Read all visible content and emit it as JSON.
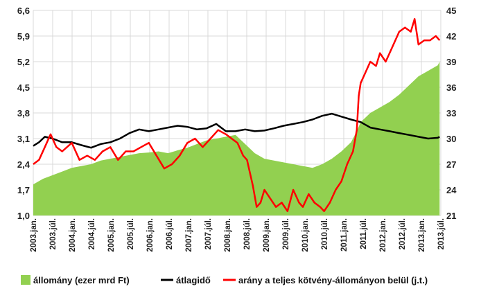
{
  "chart_data": {
    "type": "line",
    "colors": {
      "area": "#92d050",
      "avg": "#000000",
      "ratio": "#ff0000",
      "grid": "#d9d9d9"
    },
    "x_categories": [
      "2003.jan.",
      "2003.júl.",
      "2004.jan.",
      "2004.júl.",
      "2005.jan.",
      "2005.júl.",
      "2006.jan.",
      "2006.júl.",
      "2007.jan.",
      "2007.júl.",
      "2008.jan.",
      "2008.júl.",
      "2009.jan.",
      "2009.júl.",
      "2010.jan.",
      "2010.júl.",
      "2011.jan.",
      "2011.júl.",
      "2012.jan.",
      "2012.júl.",
      "2013.jan.",
      "2013.júl."
    ],
    "y_left": {
      "min": 1.0,
      "max": 6.6,
      "ticks": [
        "1,0",
        "1,7",
        "2,4",
        "3,1",
        "3,8",
        "4,5",
        "5,2",
        "5,9",
        "6,6"
      ]
    },
    "y_right": {
      "min": 21,
      "max": 45,
      "ticks": [
        "21",
        "24",
        "27",
        "30",
        "33",
        "36",
        "39",
        "42",
        "45"
      ]
    },
    "series": [
      {
        "name": "állomány (ezer mrd Ft)",
        "kind": "area",
        "axis": "left",
        "points": [
          [
            2003.0,
            1.85
          ],
          [
            2003.25,
            2.0
          ],
          [
            2003.5,
            2.1
          ],
          [
            2003.75,
            2.2
          ],
          [
            2004.0,
            2.3
          ],
          [
            2004.25,
            2.35
          ],
          [
            2004.5,
            2.4
          ],
          [
            2004.75,
            2.5
          ],
          [
            2005.0,
            2.55
          ],
          [
            2005.25,
            2.6
          ],
          [
            2005.5,
            2.65
          ],
          [
            2005.75,
            2.7
          ],
          [
            2006.0,
            2.72
          ],
          [
            2006.25,
            2.75
          ],
          [
            2006.5,
            2.7
          ],
          [
            2006.75,
            2.78
          ],
          [
            2007.0,
            2.85
          ],
          [
            2007.25,
            2.95
          ],
          [
            2007.5,
            3.05
          ],
          [
            2007.75,
            3.1
          ],
          [
            2008.0,
            3.15
          ],
          [
            2008.25,
            3.2
          ],
          [
            2008.5,
            2.95
          ],
          [
            2008.75,
            2.7
          ],
          [
            2009.0,
            2.55
          ],
          [
            2009.25,
            2.5
          ],
          [
            2009.5,
            2.45
          ],
          [
            2009.75,
            2.4
          ],
          [
            2010.0,
            2.35
          ],
          [
            2010.25,
            2.3
          ],
          [
            2010.5,
            2.4
          ],
          [
            2010.75,
            2.55
          ],
          [
            2011.0,
            2.75
          ],
          [
            2011.25,
            3.0
          ],
          [
            2011.4,
            3.3
          ],
          [
            2011.5,
            3.55
          ],
          [
            2011.75,
            3.8
          ],
          [
            2012.0,
            3.95
          ],
          [
            2012.25,
            4.1
          ],
          [
            2012.5,
            4.3
          ],
          [
            2012.75,
            4.55
          ],
          [
            2013.0,
            4.8
          ],
          [
            2013.25,
            4.95
          ],
          [
            2013.5,
            5.1
          ],
          [
            2013.55,
            5.2
          ]
        ]
      },
      {
        "name": "átlagidő",
        "kind": "line",
        "axis": "left",
        "points": [
          [
            2003.0,
            2.9
          ],
          [
            2003.15,
            3.0
          ],
          [
            2003.3,
            3.15
          ],
          [
            2003.5,
            3.1
          ],
          [
            2003.75,
            3.0
          ],
          [
            2004.0,
            3.0
          ],
          [
            2004.25,
            2.92
          ],
          [
            2004.5,
            2.85
          ],
          [
            2004.75,
            2.95
          ],
          [
            2005.0,
            3.0
          ],
          [
            2005.25,
            3.1
          ],
          [
            2005.5,
            3.25
          ],
          [
            2005.75,
            3.35
          ],
          [
            2006.0,
            3.3
          ],
          [
            2006.25,
            3.35
          ],
          [
            2006.5,
            3.4
          ],
          [
            2006.75,
            3.45
          ],
          [
            2007.0,
            3.42
          ],
          [
            2007.25,
            3.35
          ],
          [
            2007.5,
            3.38
          ],
          [
            2007.75,
            3.5
          ],
          [
            2008.0,
            3.3
          ],
          [
            2008.25,
            3.3
          ],
          [
            2008.5,
            3.35
          ],
          [
            2008.75,
            3.3
          ],
          [
            2009.0,
            3.32
          ],
          [
            2009.25,
            3.38
          ],
          [
            2009.5,
            3.45
          ],
          [
            2009.75,
            3.5
          ],
          [
            2010.0,
            3.55
          ],
          [
            2010.25,
            3.62
          ],
          [
            2010.5,
            3.72
          ],
          [
            2010.75,
            3.78
          ],
          [
            2011.0,
            3.7
          ],
          [
            2011.25,
            3.62
          ],
          [
            2011.5,
            3.55
          ],
          [
            2011.75,
            3.4
          ],
          [
            2012.0,
            3.35
          ],
          [
            2012.25,
            3.3
          ],
          [
            2012.5,
            3.25
          ],
          [
            2012.75,
            3.2
          ],
          [
            2013.0,
            3.15
          ],
          [
            2013.25,
            3.1
          ],
          [
            2013.5,
            3.12
          ],
          [
            2013.55,
            3.15
          ]
        ]
      },
      {
        "name": "arány a teljes kötvény-állományon belül (j.t.)",
        "kind": "line",
        "axis": "right",
        "points": [
          [
            2003.0,
            27.0
          ],
          [
            2003.15,
            27.5
          ],
          [
            2003.3,
            29.0
          ],
          [
            2003.45,
            30.5
          ],
          [
            2003.6,
            29.0
          ],
          [
            2003.75,
            28.5
          ],
          [
            2004.0,
            29.5
          ],
          [
            2004.2,
            27.5
          ],
          [
            2004.4,
            28.0
          ],
          [
            2004.6,
            27.5
          ],
          [
            2004.8,
            28.5
          ],
          [
            2005.0,
            29.0
          ],
          [
            2005.2,
            27.5
          ],
          [
            2005.4,
            28.5
          ],
          [
            2005.6,
            28.5
          ],
          [
            2005.8,
            29.0
          ],
          [
            2006.0,
            29.5
          ],
          [
            2006.2,
            28.0
          ],
          [
            2006.4,
            26.5
          ],
          [
            2006.6,
            27.0
          ],
          [
            2006.8,
            28.0
          ],
          [
            2007.0,
            29.5
          ],
          [
            2007.2,
            30.0
          ],
          [
            2007.4,
            29.0
          ],
          [
            2007.6,
            30.0
          ],
          [
            2007.8,
            31.0
          ],
          [
            2008.0,
            30.5
          ],
          [
            2008.15,
            30.0
          ],
          [
            2008.3,
            29.5
          ],
          [
            2008.45,
            28.0
          ],
          [
            2008.55,
            27.5
          ],
          [
            2008.6,
            26.5
          ],
          [
            2008.7,
            24.5
          ],
          [
            2008.8,
            22.0
          ],
          [
            2008.9,
            22.5
          ],
          [
            2009.0,
            24.0
          ],
          [
            2009.15,
            23.0
          ],
          [
            2009.3,
            22.0
          ],
          [
            2009.45,
            22.5
          ],
          [
            2009.6,
            21.5
          ],
          [
            2009.75,
            24.0
          ],
          [
            2009.9,
            22.5
          ],
          [
            2010.0,
            22.0
          ],
          [
            2010.15,
            23.5
          ],
          [
            2010.3,
            22.5
          ],
          [
            2010.45,
            22.0
          ],
          [
            2010.55,
            21.5
          ],
          [
            2010.7,
            22.5
          ],
          [
            2010.85,
            24.0
          ],
          [
            2011.0,
            25.0
          ],
          [
            2011.15,
            27.0
          ],
          [
            2011.3,
            28.5
          ],
          [
            2011.4,
            31.0
          ],
          [
            2011.45,
            35.0
          ],
          [
            2011.5,
            36.5
          ],
          [
            2011.6,
            37.5
          ],
          [
            2011.75,
            39.0
          ],
          [
            2011.9,
            38.5
          ],
          [
            2012.0,
            40.0
          ],
          [
            2012.15,
            39.0
          ],
          [
            2012.3,
            40.5
          ],
          [
            2012.5,
            42.5
          ],
          [
            2012.65,
            43.0
          ],
          [
            2012.8,
            42.5
          ],
          [
            2012.9,
            44.0
          ],
          [
            2013.0,
            41.0
          ],
          [
            2013.15,
            41.5
          ],
          [
            2013.3,
            41.5
          ],
          [
            2013.45,
            42.0
          ],
          [
            2013.55,
            41.5
          ]
        ]
      }
    ],
    "legend": [
      {
        "label": "állomány (ezer mrd Ft)",
        "style": "box"
      },
      {
        "label": "átlagidő",
        "style": "line-black"
      },
      {
        "label": "arány a teljes kötvény-állományon belül (j.t.)",
        "style": "line-red"
      }
    ]
  }
}
